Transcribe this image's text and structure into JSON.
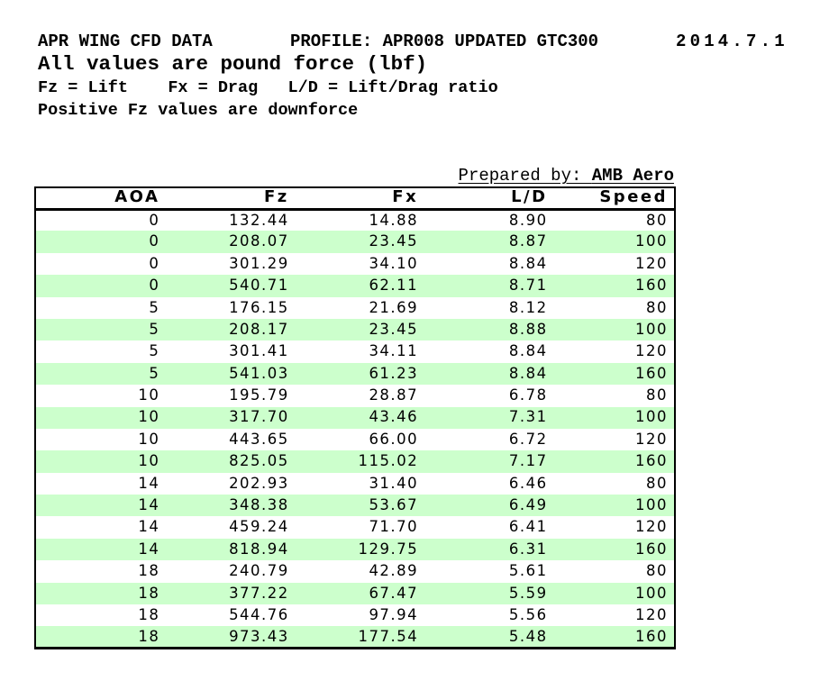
{
  "header": {
    "title": "APR WING CFD DATA",
    "profile": "PROFILE: APR008 UPDATED GTC300",
    "date": "2014.7.1",
    "units_note": "All values are pound force (lbf)",
    "legend": "Fz = Lift    Fx = Drag   L/D = Lift/Drag ratio",
    "downforce_note": "Positive Fz values are downforce"
  },
  "prepared": {
    "label": "Prepared by: ",
    "value": "AMB Aero"
  },
  "colors": {
    "row_highlight": "#ccffcc",
    "border": "#000000",
    "text": "#000000",
    "background": "#ffffff"
  },
  "chart_data": {
    "type": "table",
    "columns": [
      "AOA",
      "Fz",
      "Fx",
      "L/D",
      "Speed"
    ],
    "rows": [
      [
        "0",
        "132.44",
        "14.88",
        "8.90",
        "80"
      ],
      [
        "0",
        "208.07",
        "23.45",
        "8.87",
        "100"
      ],
      [
        "0",
        "301.29",
        "34.10",
        "8.84",
        "120"
      ],
      [
        "0",
        "540.71",
        "62.11",
        "8.71",
        "160"
      ],
      [
        "5",
        "176.15",
        "21.69",
        "8.12",
        "80"
      ],
      [
        "5",
        "208.17",
        "23.45",
        "8.88",
        "100"
      ],
      [
        "5",
        "301.41",
        "34.11",
        "8.84",
        "120"
      ],
      [
        "5",
        "541.03",
        "61.23",
        "8.84",
        "160"
      ],
      [
        "10",
        "195.79",
        "28.87",
        "6.78",
        "80"
      ],
      [
        "10",
        "317.70",
        "43.46",
        "7.31",
        "100"
      ],
      [
        "10",
        "443.65",
        "66.00",
        "6.72",
        "120"
      ],
      [
        "10",
        "825.05",
        "115.02",
        "7.17",
        "160"
      ],
      [
        "14",
        "202.93",
        "31.40",
        "6.46",
        "80"
      ],
      [
        "14",
        "348.38",
        "53.67",
        "6.49",
        "100"
      ],
      [
        "14",
        "459.24",
        "71.70",
        "6.41",
        "120"
      ],
      [
        "14",
        "818.94",
        "129.75",
        "6.31",
        "160"
      ],
      [
        "18",
        "240.79",
        "42.89",
        "5.61",
        "80"
      ],
      [
        "18",
        "377.22",
        "67.47",
        "5.59",
        "100"
      ],
      [
        "18",
        "544.76",
        "97.94",
        "5.56",
        "120"
      ],
      [
        "18",
        "973.43",
        "177.54",
        "5.48",
        "160"
      ]
    ]
  }
}
